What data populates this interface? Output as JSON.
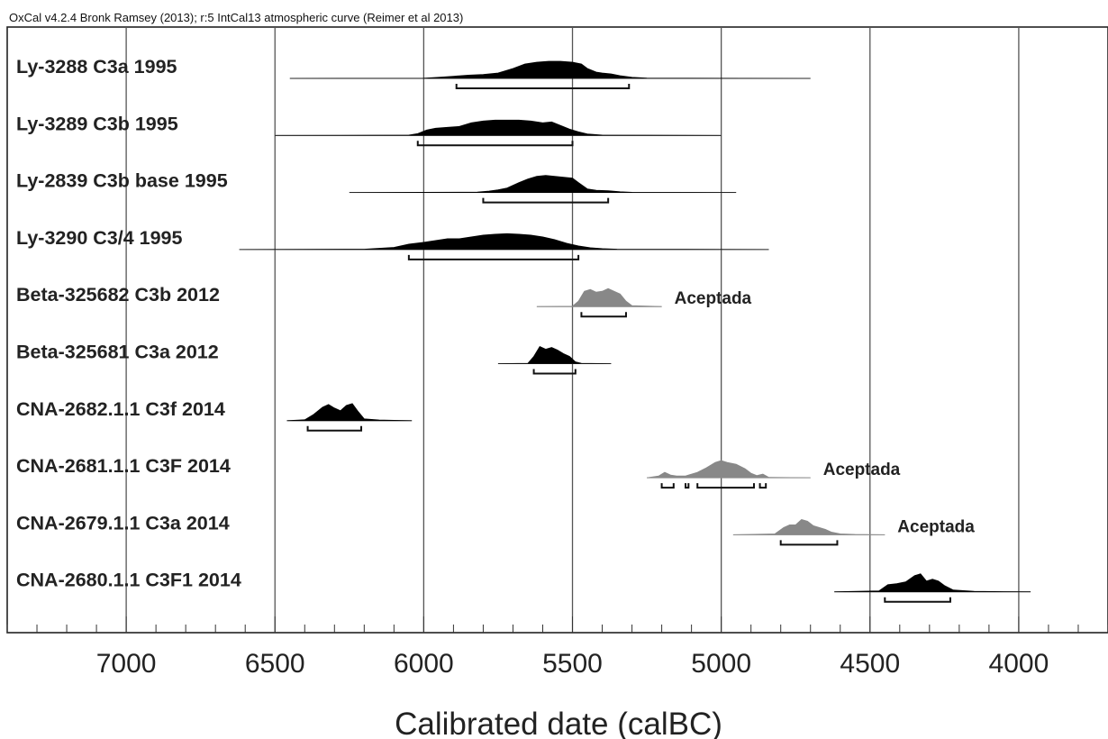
{
  "header": "OxCal v4.2.4 Bronk Ramsey (2013); r:5 IntCal13 atmospheric curve (Reimer et al 2013)",
  "chart_data": {
    "type": "ridge",
    "xlabel": "Calibrated date (calBC)",
    "xlim": [
      7400,
      3700
    ],
    "x_reversed": true,
    "xticks": [
      7000,
      6500,
      6000,
      5500,
      5000,
      4500,
      4000
    ],
    "minor_tick_step": 100,
    "grid": true,
    "series": [
      {
        "name": "Ly-3288 C3a 1995",
        "color": "#000000",
        "range": [
          6450,
          4700
        ],
        "hpd": [
          [
            5890,
            5310
          ]
        ],
        "density": [
          [
            6450,
            0
          ],
          [
            6000,
            0.01
          ],
          [
            5950,
            0.06
          ],
          [
            5900,
            0.12
          ],
          [
            5850,
            0.18
          ],
          [
            5800,
            0.22
          ],
          [
            5750,
            0.3
          ],
          [
            5700,
            0.55
          ],
          [
            5660,
            0.8
          ],
          [
            5620,
            0.9
          ],
          [
            5580,
            0.95
          ],
          [
            5540,
            0.95
          ],
          [
            5500,
            0.9
          ],
          [
            5470,
            0.8
          ],
          [
            5450,
            0.55
          ],
          [
            5420,
            0.35
          ],
          [
            5400,
            0.3
          ],
          [
            5370,
            0.25
          ],
          [
            5340,
            0.15
          ],
          [
            5300,
            0.06
          ],
          [
            5250,
            0.02
          ],
          [
            5200,
            0.01
          ],
          [
            4700,
            0
          ]
        ]
      },
      {
        "name": "Ly-3289 C3b 1995",
        "color": "#000000",
        "range": [
          6500,
          5000
        ],
        "hpd": [
          [
            6020,
            5500
          ]
        ],
        "density": [
          [
            6500,
            0
          ],
          [
            6050,
            0.02
          ],
          [
            6020,
            0.1
          ],
          [
            5990,
            0.3
          ],
          [
            5960,
            0.4
          ],
          [
            5920,
            0.45
          ],
          [
            5880,
            0.5
          ],
          [
            5840,
            0.7
          ],
          [
            5800,
            0.8
          ],
          [
            5760,
            0.85
          ],
          [
            5720,
            0.85
          ],
          [
            5680,
            0.85
          ],
          [
            5640,
            0.8
          ],
          [
            5600,
            0.7
          ],
          [
            5570,
            0.75
          ],
          [
            5540,
            0.55
          ],
          [
            5510,
            0.35
          ],
          [
            5480,
            0.2
          ],
          [
            5450,
            0.08
          ],
          [
            5400,
            0.02
          ],
          [
            5000,
            0
          ]
        ]
      },
      {
        "name": "Ly-2839 C3b base 1995",
        "color": "#000000",
        "range": [
          6250,
          4950
        ],
        "hpd": [
          [
            5800,
            5380
          ]
        ],
        "density": [
          [
            6250,
            0
          ],
          [
            5820,
            0.02
          ],
          [
            5780,
            0.08
          ],
          [
            5750,
            0.15
          ],
          [
            5720,
            0.25
          ],
          [
            5680,
            0.55
          ],
          [
            5650,
            0.75
          ],
          [
            5620,
            0.9
          ],
          [
            5590,
            0.95
          ],
          [
            5560,
            0.9
          ],
          [
            5530,
            0.85
          ],
          [
            5500,
            0.8
          ],
          [
            5480,
            0.55
          ],
          [
            5450,
            0.2
          ],
          [
            5420,
            0.12
          ],
          [
            5380,
            0.1
          ],
          [
            5340,
            0.04
          ],
          [
            5300,
            0.01
          ],
          [
            4950,
            0
          ]
        ]
      },
      {
        "name": "Ly-3290 C3/4 1995",
        "color": "#000000",
        "range": [
          6620,
          4840
        ],
        "hpd": [
          [
            6050,
            5480
          ]
        ],
        "density": [
          [
            6620,
            0
          ],
          [
            6200,
            0.02
          ],
          [
            6100,
            0.12
          ],
          [
            6050,
            0.3
          ],
          [
            6000,
            0.4
          ],
          [
            5960,
            0.5
          ],
          [
            5920,
            0.6
          ],
          [
            5880,
            0.6
          ],
          [
            5840,
            0.7
          ],
          [
            5800,
            0.8
          ],
          [
            5760,
            0.85
          ],
          [
            5720,
            0.88
          ],
          [
            5680,
            0.85
          ],
          [
            5640,
            0.8
          ],
          [
            5600,
            0.7
          ],
          [
            5560,
            0.55
          ],
          [
            5520,
            0.35
          ],
          [
            5480,
            0.2
          ],
          [
            5440,
            0.1
          ],
          [
            5400,
            0.05
          ],
          [
            5350,
            0.02
          ],
          [
            4840,
            0
          ]
        ]
      },
      {
        "name": "Beta-325682 C3b 2012",
        "color": "#888888",
        "range": [
          5620,
          5200
        ],
        "hpd": [
          [
            5470,
            5320
          ]
        ],
        "density": [
          [
            5620,
            0
          ],
          [
            5500,
            0.02
          ],
          [
            5480,
            0.3
          ],
          [
            5460,
            0.85
          ],
          [
            5440,
            0.95
          ],
          [
            5420,
            0.8
          ],
          [
            5400,
            0.85
          ],
          [
            5380,
            1.0
          ],
          [
            5360,
            0.85
          ],
          [
            5340,
            0.7
          ],
          [
            5320,
            0.3
          ],
          [
            5300,
            0.05
          ],
          [
            5200,
            0
          ]
        ],
        "note": "Aceptada"
      },
      {
        "name": "Beta-325681 C3a 2012",
        "color": "#000000",
        "range": [
          5750,
          5370
        ],
        "hpd": [
          [
            5630,
            5490
          ]
        ],
        "density": [
          [
            5750,
            0
          ],
          [
            5650,
            0.02
          ],
          [
            5630,
            0.4
          ],
          [
            5610,
            0.95
          ],
          [
            5590,
            0.8
          ],
          [
            5570,
            0.9
          ],
          [
            5550,
            0.75
          ],
          [
            5530,
            0.55
          ],
          [
            5510,
            0.4
          ],
          [
            5490,
            0.1
          ],
          [
            5470,
            0.02
          ],
          [
            5370,
            0
          ]
        ]
      },
      {
        "name": "CNA-2682.1.1 C3f 2014",
        "color": "#000000",
        "range": [
          6460,
          6040
        ],
        "hpd": [
          [
            6390,
            6210
          ]
        ],
        "density": [
          [
            6460,
            0
          ],
          [
            6400,
            0.05
          ],
          [
            6370,
            0.35
          ],
          [
            6340,
            0.75
          ],
          [
            6320,
            0.9
          ],
          [
            6300,
            0.7
          ],
          [
            6280,
            0.55
          ],
          [
            6260,
            0.85
          ],
          [
            6240,
            0.95
          ],
          [
            6220,
            0.5
          ],
          [
            6200,
            0.1
          ],
          [
            6150,
            0.04
          ],
          [
            6100,
            0.02
          ],
          [
            6040,
            0
          ]
        ]
      },
      {
        "name": "CNA-2681.1.1 C3F 2014",
        "color": "#888888",
        "range": [
          5250,
          4700
        ],
        "hpd": [
          [
            5200,
            5160
          ],
          [
            5120,
            5110
          ],
          [
            5080,
            4890
          ],
          [
            4870,
            4850
          ]
        ],
        "density": [
          [
            5250,
            0
          ],
          [
            5210,
            0.1
          ],
          [
            5190,
            0.3
          ],
          [
            5170,
            0.15
          ],
          [
            5150,
            0.1
          ],
          [
            5120,
            0.1
          ],
          [
            5080,
            0.3
          ],
          [
            5050,
            0.55
          ],
          [
            5020,
            0.85
          ],
          [
            5000,
            0.95
          ],
          [
            4980,
            0.85
          ],
          [
            4950,
            0.75
          ],
          [
            4920,
            0.5
          ],
          [
            4900,
            0.25
          ],
          [
            4880,
            0.12
          ],
          [
            4860,
            0.2
          ],
          [
            4840,
            0.02
          ],
          [
            4700,
            0
          ]
        ],
        "note": "Aceptada"
      },
      {
        "name": "CNA-2679.1.1 C3a 2014",
        "color": "#888888",
        "range": [
          4960,
          4450
        ],
        "hpd": [
          [
            4800,
            4610
          ]
        ],
        "density": [
          [
            4960,
            0
          ],
          [
            4820,
            0.05
          ],
          [
            4790,
            0.4
          ],
          [
            4770,
            0.55
          ],
          [
            4750,
            0.55
          ],
          [
            4730,
            0.85
          ],
          [
            4710,
            0.75
          ],
          [
            4690,
            0.5
          ],
          [
            4670,
            0.4
          ],
          [
            4650,
            0.3
          ],
          [
            4630,
            0.15
          ],
          [
            4600,
            0.05
          ],
          [
            4550,
            0.02
          ],
          [
            4450,
            0
          ]
        ],
        "note": "Aceptada"
      },
      {
        "name": "CNA-2680.1.1 C3F1 2014",
        "color": "#000000",
        "range": [
          4620,
          3960
        ],
        "hpd": [
          [
            4450,
            4230
          ]
        ],
        "density": [
          [
            4620,
            0
          ],
          [
            4470,
            0.05
          ],
          [
            4440,
            0.4
          ],
          [
            4410,
            0.45
          ],
          [
            4380,
            0.55
          ],
          [
            4350,
            0.9
          ],
          [
            4330,
            1.0
          ],
          [
            4310,
            0.6
          ],
          [
            4290,
            0.7
          ],
          [
            4270,
            0.6
          ],
          [
            4250,
            0.35
          ],
          [
            4220,
            0.1
          ],
          [
            4150,
            0.03
          ],
          [
            4050,
            0.01
          ],
          [
            3960,
            0
          ]
        ]
      }
    ]
  }
}
